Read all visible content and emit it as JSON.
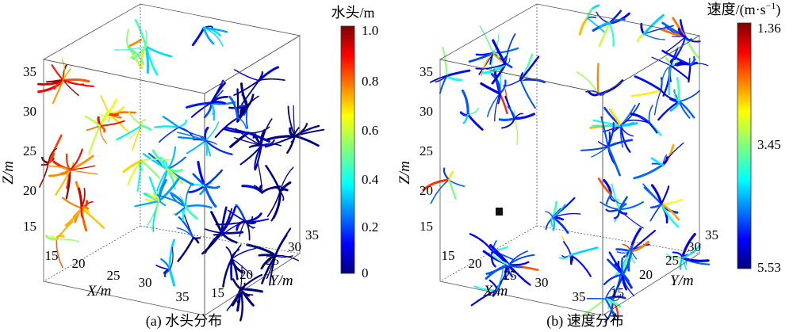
{
  "panels": [
    {
      "caption": "(a)  水头分布",
      "axis_labels": {
        "x": "X/m",
        "y": "Y/m",
        "z": "Z/m"
      },
      "x_ticks": [
        "15",
        "20",
        "25",
        "30",
        "35"
      ],
      "y_ticks": [
        "15",
        "20",
        "25",
        "30",
        "35"
      ],
      "z_ticks": [
        "15",
        "20",
        "25",
        "30",
        "35"
      ],
      "colorbar": {
        "title": "水头/m",
        "tick_labels": [
          "1.0",
          "0.8",
          "0.6",
          "0.4",
          "0.2",
          "0"
        ],
        "colormap": "jet",
        "top_color": "#7f0000",
        "bottom_color": "#00007f"
      }
    },
    {
      "caption": "(b)  速度分布",
      "axis_labels": {
        "x": "X/m",
        "y": "Y/m",
        "z": "Z/m"
      },
      "x_ticks": [
        "15",
        "20",
        "25",
        "30",
        "35"
      ],
      "y_ticks": [
        "15",
        "20",
        "25",
        "30",
        "35"
      ],
      "z_ticks": [
        "15",
        "20",
        "25",
        "30",
        "35"
      ],
      "colorbar": {
        "title": "速度/(m·s",
        "title_sup": "−1",
        "title_end": ")",
        "tick_labels": [
          "1.36",
          "3.45",
          "5.53"
        ],
        "colormap": "jet",
        "top_color": "#7f0000",
        "bottom_color": "#00007f"
      }
    }
  ]
}
